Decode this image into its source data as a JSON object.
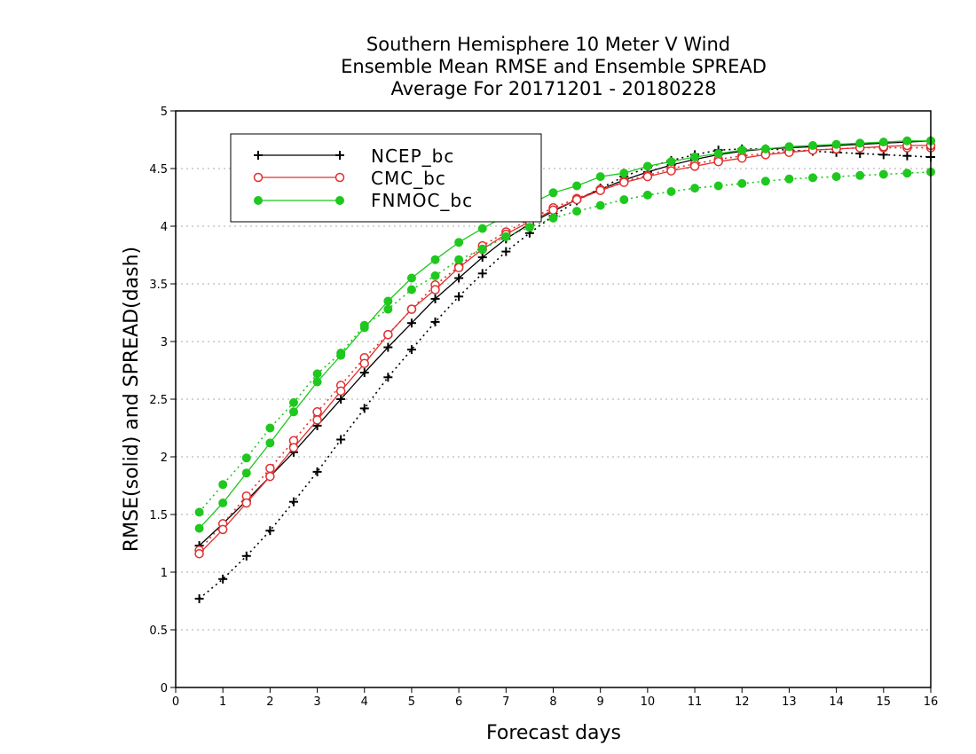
{
  "chart_data": {
    "type": "line",
    "title_lines": [
      "Southern Hemisphere 10 Meter V Wind",
      "Ensemble Mean RMSE and Ensemble SPREAD",
      "Average For 20171201 - 20180228"
    ],
    "xlabel": "Forecast days",
    "ylabel": "RMSE(solid) and SPREAD(dash)",
    "xlim": [
      0,
      16
    ],
    "ylim": [
      0,
      5
    ],
    "x_ticks": [
      "0",
      "1",
      "2",
      "3",
      "4",
      "5",
      "6",
      "7",
      "8",
      "9",
      "10",
      "11",
      "12",
      "13",
      "14",
      "15",
      "16"
    ],
    "y_ticks": [
      "0",
      "0.5",
      "1",
      "1.5",
      "2",
      "2.5",
      "3",
      "3.5",
      "4",
      "4.5",
      "5"
    ],
    "grid": "horizontal dotted",
    "legend_position": "top-left",
    "x": [
      0.5,
      1,
      1.5,
      2,
      2.5,
      3,
      3.5,
      4,
      4.5,
      5,
      5.5,
      6,
      6.5,
      7,
      7.5,
      8,
      8.5,
      9,
      9.5,
      10,
      10.5,
      11,
      11.5,
      12,
      12.5,
      13,
      13.5,
      14,
      14.5,
      15,
      15.5,
      16
    ],
    "series": [
      {
        "name": "NCEP_bc",
        "color": "#000000",
        "marker": "plus",
        "rmse": [
          1.23,
          1.42,
          1.62,
          1.83,
          2.04,
          2.27,
          2.5,
          2.73,
          2.95,
          3.16,
          3.37,
          3.55,
          3.73,
          3.89,
          4.02,
          4.13,
          4.23,
          4.32,
          4.4,
          4.47,
          4.53,
          4.58,
          4.62,
          4.65,
          4.67,
          4.68,
          4.69,
          4.7,
          4.71,
          4.72,
          4.73,
          4.74
        ],
        "spread": [
          0.77,
          0.94,
          1.14,
          1.36,
          1.61,
          1.87,
          2.15,
          2.42,
          2.69,
          2.93,
          3.17,
          3.39,
          3.59,
          3.78,
          3.94,
          4.09,
          4.22,
          4.33,
          4.43,
          4.51,
          4.57,
          4.62,
          4.66,
          4.67,
          4.67,
          4.66,
          4.65,
          4.64,
          4.63,
          4.62,
          4.61,
          4.6
        ]
      },
      {
        "name": "CMC_bc",
        "color": "#e03030",
        "marker": "open-circle",
        "rmse": [
          1.16,
          1.37,
          1.6,
          1.83,
          2.08,
          2.32,
          2.57,
          2.81,
          3.06,
          3.28,
          3.45,
          3.64,
          3.8,
          3.93,
          4.04,
          4.14,
          4.23,
          4.31,
          4.38,
          4.43,
          4.48,
          4.52,
          4.56,
          4.59,
          4.62,
          4.64,
          4.66,
          4.67,
          4.68,
          4.69,
          4.7,
          4.7
        ],
        "spread": [
          1.19,
          1.42,
          1.66,
          1.9,
          2.14,
          2.39,
          2.62,
          2.86,
          3.06,
          3.28,
          3.49,
          3.65,
          3.83,
          3.95,
          4.06,
          4.16,
          4.24,
          4.32,
          4.39,
          4.44,
          4.5,
          4.54,
          4.58,
          4.61,
          4.63,
          4.65,
          4.66,
          4.67,
          4.68,
          4.68,
          4.68,
          4.68
        ]
      },
      {
        "name": "FNMOC_bc",
        "color": "#1ec81e",
        "marker": "filled-circle",
        "rmse": [
          1.38,
          1.6,
          1.86,
          2.12,
          2.39,
          2.65,
          2.88,
          3.12,
          3.35,
          3.55,
          3.71,
          3.86,
          3.98,
          4.09,
          4.19,
          4.29,
          4.35,
          4.43,
          4.46,
          4.52,
          4.56,
          4.6,
          4.63,
          4.66,
          4.67,
          4.69,
          4.7,
          4.71,
          4.72,
          4.73,
          4.74,
          4.74
        ],
        "spread": [
          1.52,
          1.76,
          1.99,
          2.25,
          2.47,
          2.72,
          2.9,
          3.14,
          3.28,
          3.45,
          3.57,
          3.71,
          3.8,
          3.91,
          3.99,
          4.07,
          4.13,
          4.18,
          4.23,
          4.27,
          4.3,
          4.33,
          4.35,
          4.37,
          4.39,
          4.41,
          4.42,
          4.43,
          4.44,
          4.45,
          4.46,
          4.47
        ]
      }
    ]
  }
}
